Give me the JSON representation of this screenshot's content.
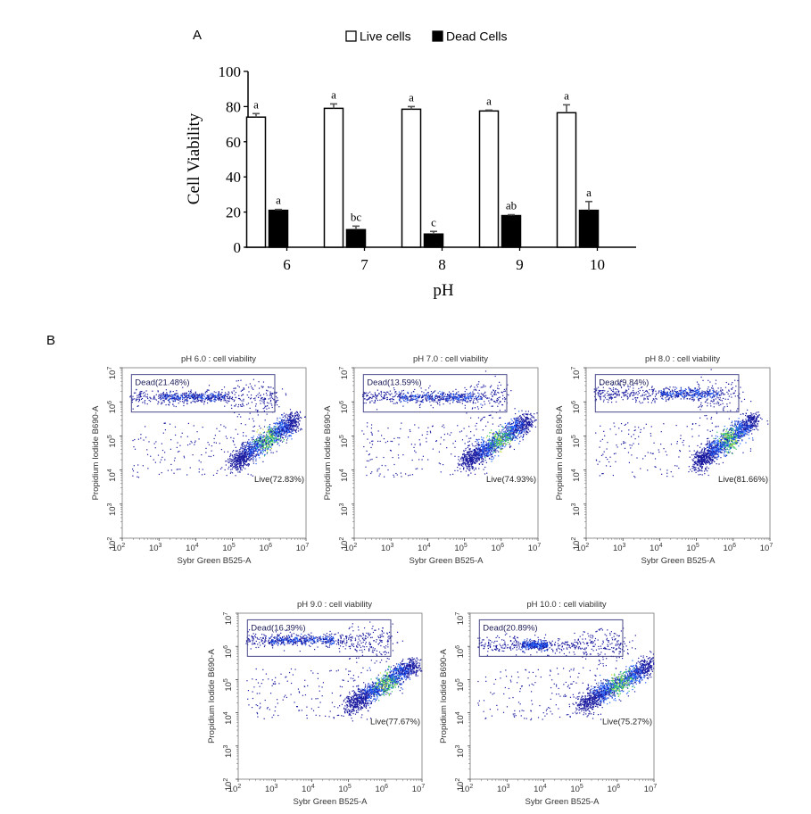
{
  "panel_labels": {
    "a": "A",
    "b": "B"
  },
  "chart_data": [
    {
      "type": "bar",
      "title": "",
      "xlabel": "pH",
      "ylabel": "Cell Viability",
      "categories": [
        "6",
        "7",
        "8",
        "9",
        "10"
      ],
      "ylim": [
        0,
        100
      ],
      "yticks": [
        0,
        20,
        40,
        60,
        80,
        100
      ],
      "legend_position": "top-center",
      "grid": false,
      "series": [
        {
          "name": "Live cells",
          "fill": "#ffffff",
          "values": [
            74,
            79,
            78.5,
            77.5,
            76.5
          ],
          "errors": [
            2,
            2.5,
            1.5,
            0.5,
            4.5
          ],
          "significance": [
            "a",
            "a",
            "a",
            "a",
            "a"
          ]
        },
        {
          "name": "Dead Cells",
          "fill": "#000000",
          "values": [
            21,
            10,
            7.5,
            18,
            21
          ],
          "errors": [
            0.5,
            2,
            1.5,
            0.5,
            5
          ],
          "significance": [
            "a",
            "bc",
            "c",
            "ab",
            "a"
          ]
        }
      ]
    },
    {
      "type": "scatter",
      "title": "pH 6.0 : cell viability",
      "xlabel": "Sybr Green B525-A",
      "ylabel": "Propidium Iodide B690-A",
      "x_scale": "log",
      "y_scale": "log",
      "xlim": [
        100,
        10000000
      ],
      "ylim": [
        100,
        10000000
      ],
      "tick_exponents": [
        2,
        3,
        4,
        5,
        6,
        7
      ],
      "gates": [
        {
          "name": "Dead",
          "percent": "21.48%",
          "label": "Dead(21.48%)"
        },
        {
          "name": "Live",
          "percent": "72.83%",
          "label": "Live(72.83%)"
        }
      ]
    },
    {
      "type": "scatter",
      "title": "pH 7.0 : cell viability",
      "xlabel": "Sybr Green B525-A",
      "ylabel": "Propidium Iodide B690-A",
      "x_scale": "log",
      "y_scale": "log",
      "xlim": [
        100,
        10000000
      ],
      "ylim": [
        100,
        10000000
      ],
      "tick_exponents": [
        2,
        3,
        4,
        5,
        6,
        7
      ],
      "gates": [
        {
          "name": "Dead",
          "percent": "13.59%",
          "label": "Dead(13.59%)"
        },
        {
          "name": "Live",
          "percent": "74.93%",
          "label": "Live(74.93%)"
        }
      ]
    },
    {
      "type": "scatter",
      "title": "pH 8.0 : cell viability",
      "xlabel": "Sybr Green B525-A",
      "ylabel": "Propidium Iodide B690-A",
      "x_scale": "log",
      "y_scale": "log",
      "xlim": [
        100,
        10000000
      ],
      "ylim": [
        100,
        10000000
      ],
      "tick_exponents": [
        2,
        3,
        4,
        5,
        6,
        7
      ],
      "gates": [
        {
          "name": "Dead",
          "percent": "9.84%",
          "label": "Dead(9.84%)"
        },
        {
          "name": "Live",
          "percent": "81.66%",
          "label": "Live(81.66%)"
        }
      ]
    },
    {
      "type": "scatter",
      "title": "pH 9.0 : cell viability",
      "xlabel": "Sybr Green B525-A",
      "ylabel": "Propidium Iodide B690-A",
      "x_scale": "log",
      "y_scale": "log",
      "xlim": [
        100,
        10000000
      ],
      "ylim": [
        100,
        10000000
      ],
      "tick_exponents": [
        2,
        3,
        4,
        5,
        6,
        7
      ],
      "gates": [
        {
          "name": "Dead",
          "percent": "16.39%",
          "label": "Dead(16.39%)"
        },
        {
          "name": "Live",
          "percent": "77.67%",
          "label": "Live(77.67%)"
        }
      ]
    },
    {
      "type": "scatter",
      "title": "pH 10.0 : cell viability",
      "xlabel": "Sybr Green B525-A",
      "ylabel": "Propidium Iodide B690-A",
      "x_scale": "log",
      "y_scale": "log",
      "xlim": [
        100,
        10000000
      ],
      "ylim": [
        100,
        10000000
      ],
      "tick_exponents": [
        2,
        3,
        4,
        5,
        6,
        7
      ],
      "gates": [
        {
          "name": "Dead",
          "percent": "20.89%",
          "label": "Dead(20.89%)"
        },
        {
          "name": "Live",
          "percent": "75.27%",
          "label": "Live(75.27%)"
        }
      ]
    }
  ],
  "colors": {
    "axis": "#000000",
    "error_bar": "#555555",
    "gate_dead": "#4a4a8a",
    "gate_live": "#000000",
    "dot_low": "#1a1aa0",
    "dot_mid": "#2060ff",
    "dot_high": "#30c060",
    "dot_peak": "#c8e030",
    "gate_text": "#20205a",
    "fc_text": "#333333"
  }
}
